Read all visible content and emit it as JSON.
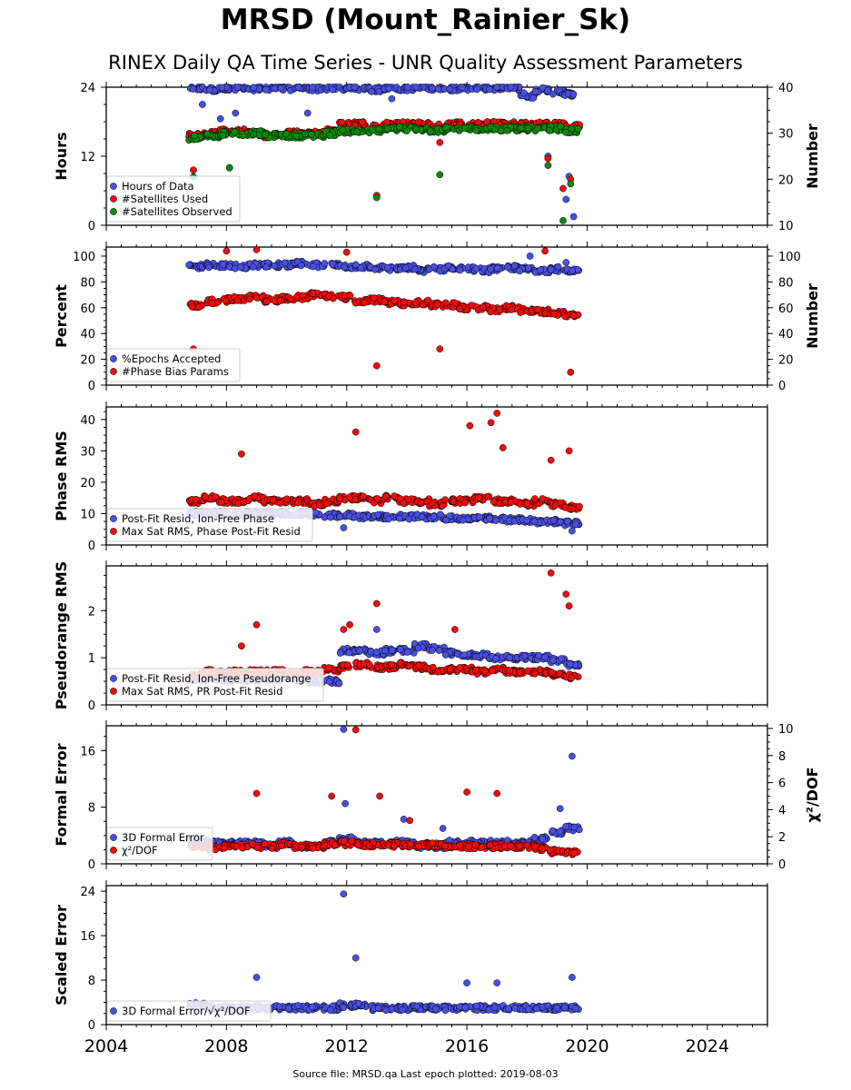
{
  "header": {
    "title": "MRSD (Mount_Rainier_Sk)",
    "subtitle": "RINEX Daily QA Time Series - UNR Quality Assessment Parameters"
  },
  "footer": {
    "source": "Source file: MRSD.qa Last epoch plotted: 2019-08-03"
  },
  "colors": {
    "blue": "#4a4fe0",
    "red": "#f20b0b",
    "green": "#0a8a0a",
    "edge": "#000000"
  },
  "chart_data": [
    {
      "type": "scatter",
      "panel": "hours-satellites",
      "ylabel": "Hours",
      "y2label": "Number",
      "ylim": [
        0,
        24
      ],
      "yticks": [
        0,
        12,
        24
      ],
      "y2lim": [
        10,
        40
      ],
      "y2ticks": [
        10,
        20,
        30,
        40
      ],
      "xlim": [
        2004,
        2026
      ],
      "legend_position": "lower-left",
      "series": [
        {
          "name": "Hours of Data",
          "color": "blue",
          "axis": "left",
          "x": [
            2007.0,
            2007.5,
            2008.0,
            2008.5,
            2009.0,
            2009.5,
            2010.0,
            2010.5,
            2011.0,
            2011.5,
            2012.0,
            2012.5,
            2013.0,
            2013.5,
            2014.0,
            2014.5,
            2015.0,
            2015.5,
            2016.0,
            2016.5,
            2017.0,
            2017.5,
            2018.0,
            2018.5,
            2019.0,
            2019.5,
            2007.2,
            2007.8,
            2008.3,
            2010.7,
            2013.5,
            2017.9,
            2018.7,
            2019.3,
            2019.4,
            2019.55
          ],
          "y": [
            23.8,
            23.6,
            23.9,
            23.7,
            23.8,
            23.9,
            23.8,
            23.9,
            23.7,
            23.9,
            23.8,
            23.9,
            23.6,
            23.9,
            23.8,
            23.9,
            23.9,
            23.8,
            23.9,
            23.9,
            23.8,
            23.9,
            22.5,
            23.5,
            23.2,
            22.8,
            21.0,
            18.5,
            19.5,
            19.5,
            22.0,
            23.0,
            12.0,
            4.5,
            8.5,
            1.5
          ]
        },
        {
          "name": "#Satellites Used",
          "color": "red",
          "axis": "right",
          "x": [
            2007.0,
            2007.5,
            2008.0,
            2008.5,
            2009.0,
            2009.5,
            2010.0,
            2010.5,
            2011.0,
            2011.5,
            2012.0,
            2012.5,
            2013.0,
            2013.5,
            2014.0,
            2014.5,
            2015.0,
            2015.5,
            2016.0,
            2016.5,
            2017.0,
            2017.5,
            2018.0,
            2018.5,
            2019.0,
            2019.5,
            2006.9,
            2008.1,
            2013.0,
            2015.1,
            2018.7,
            2019.2,
            2019.45
          ],
          "y": [
            29.5,
            30.0,
            30.5,
            30.5,
            30.0,
            29.5,
            30.0,
            30.0,
            30.0,
            30.5,
            32.0,
            32.0,
            31.5,
            32.0,
            32.0,
            32.0,
            31.5,
            32.0,
            32.0,
            32.0,
            32.0,
            32.0,
            32.0,
            32.0,
            32.0,
            31.5,
            22.0,
            22.5,
            16.5,
            28.0,
            24.5,
            18.0,
            20.0
          ]
        },
        {
          "name": "#Satellites Observed",
          "color": "green",
          "axis": "right",
          "x": [
            2007.0,
            2007.5,
            2008.0,
            2008.5,
            2009.0,
            2009.5,
            2010.0,
            2010.5,
            2011.0,
            2011.5,
            2012.0,
            2012.5,
            2013.0,
            2013.5,
            2014.0,
            2014.5,
            2015.0,
            2015.5,
            2016.0,
            2016.5,
            2017.0,
            2017.5,
            2018.0,
            2018.5,
            2019.0,
            2019.5,
            2006.9,
            2008.1,
            2013.0,
            2015.1,
            2018.7,
            2019.2,
            2019.45
          ],
          "y": [
            29.0,
            29.5,
            30.0,
            30.0,
            30.0,
            29.5,
            29.5,
            29.5,
            29.5,
            30.0,
            30.5,
            30.5,
            30.5,
            31.0,
            31.0,
            31.0,
            30.5,
            31.0,
            31.0,
            31.0,
            31.0,
            31.0,
            31.0,
            31.0,
            31.0,
            30.5,
            20.5,
            22.5,
            16.0,
            21.0,
            23.0,
            11.0,
            19.0
          ]
        }
      ]
    },
    {
      "type": "scatter",
      "panel": "epochs-phasebias",
      "ylabel": "Percent",
      "y2label": "Number",
      "ylim": [
        0,
        107
      ],
      "yticks": [
        0,
        20,
        40,
        60,
        80,
        100
      ],
      "y2lim": [
        0,
        107
      ],
      "y2ticks": [
        0,
        20,
        40,
        60,
        80,
        100
      ],
      "xlim": [
        2004,
        2026
      ],
      "legend_position": "lower-left",
      "series": [
        {
          "name": "%Epochs Accepted",
          "color": "blue",
          "axis": "left",
          "x": [
            2007.0,
            2007.5,
            2008.0,
            2008.5,
            2009.0,
            2009.5,
            2010.0,
            2010.5,
            2011.0,
            2011.5,
            2012.0,
            2012.5,
            2013.0,
            2013.5,
            2014.0,
            2014.5,
            2015.0,
            2015.5,
            2016.0,
            2016.5,
            2017.0,
            2017.5,
            2018.0,
            2018.5,
            2019.0,
            2019.5,
            2018.1,
            2019.3
          ],
          "y": [
            92,
            93,
            93,
            92,
            93,
            93,
            93,
            94,
            93,
            93,
            92,
            92,
            91,
            90,
            91,
            89,
            90,
            91,
            90,
            89,
            90,
            91,
            90,
            89,
            90,
            88,
            100,
            95
          ]
        },
        {
          "name": "#Phase Bias Params",
          "color": "red",
          "axis": "right",
          "x": [
            2007.0,
            2007.5,
            2008.0,
            2008.5,
            2009.0,
            2009.5,
            2010.0,
            2010.5,
            2011.0,
            2011.5,
            2012.0,
            2012.5,
            2013.0,
            2013.5,
            2014.0,
            2014.5,
            2015.0,
            2015.5,
            2016.0,
            2016.5,
            2017.0,
            2017.5,
            2018.0,
            2018.5,
            2019.0,
            2019.5,
            2008.0,
            2009.0,
            2012.0,
            2013.0,
            2015.1,
            2018.6,
            2006.9,
            2019.45
          ],
          "y": [
            62,
            65,
            66,
            67,
            68,
            66,
            67,
            68,
            70,
            69,
            68,
            65,
            66,
            64,
            63,
            64,
            62,
            62,
            60,
            60,
            58,
            60,
            58,
            57,
            56,
            54,
            104,
            105,
            103,
            15,
            28,
            104,
            28,
            10
          ]
        }
      ]
    },
    {
      "type": "scatter",
      "panel": "phase-rms",
      "ylabel": "Phase RMS",
      "ylim": [
        0,
        44
      ],
      "yticks": [
        0,
        10,
        20,
        30,
        40
      ],
      "xlim": [
        2004,
        2026
      ],
      "legend_position": "lower-left",
      "series": [
        {
          "name": "Post-Fit Resid, Ion-Free Phase",
          "color": "blue",
          "x": [
            2007.0,
            2007.5,
            2008.0,
            2008.5,
            2009.0,
            2009.5,
            2010.0,
            2010.5,
            2011.0,
            2011.5,
            2012.0,
            2012.5,
            2013.0,
            2013.5,
            2014.0,
            2014.5,
            2015.0,
            2015.5,
            2016.0,
            2016.5,
            2017.0,
            2017.5,
            2018.0,
            2018.5,
            2019.0,
            2019.5,
            2011.9,
            2019.5
          ],
          "y": [
            10,
            10,
            10,
            10,
            10,
            10,
            10,
            10,
            10,
            9.5,
            9.5,
            9.0,
            9.0,
            9.0,
            9.0,
            9.0,
            9.0,
            8.5,
            8.5,
            8.5,
            8.5,
            8.0,
            8.0,
            7.5,
            7.5,
            7.0,
            5.5,
            4.5
          ]
        },
        {
          "name": "Max Sat RMS, Phase Post-Fit Resid",
          "color": "red",
          "x": [
            2007.0,
            2007.5,
            2008.0,
            2008.5,
            2009.0,
            2009.5,
            2010.0,
            2010.5,
            2011.0,
            2011.5,
            2012.0,
            2012.5,
            2013.0,
            2013.5,
            2014.0,
            2014.5,
            2015.0,
            2015.5,
            2016.0,
            2016.5,
            2017.0,
            2017.5,
            2018.0,
            2018.5,
            2019.0,
            2019.5,
            2008.5,
            2012.3,
            2016.1,
            2016.8,
            2017.0,
            2017.2,
            2018.8,
            2019.4
          ],
          "y": [
            14,
            15,
            14,
            14,
            15,
            14,
            14,
            14,
            13,
            14,
            15,
            15,
            14,
            15,
            14,
            14,
            13,
            14,
            14,
            15,
            14,
            14,
            13,
            14,
            13,
            12,
            29,
            36,
            38,
            39,
            42,
            31,
            27,
            30
          ]
        }
      ]
    },
    {
      "type": "scatter",
      "panel": "pseudorange-rms",
      "ylabel": "Pseudorange RMS",
      "ylim": [
        0,
        2.95
      ],
      "yticks": [
        0,
        1,
        2
      ],
      "xlim": [
        2004,
        2026
      ],
      "legend_position": "lower-left",
      "series": [
        {
          "name": "Post-Fit Resid, Ion-Free Pseudorange",
          "color": "blue",
          "x": [
            2007.0,
            2007.5,
            2008.0,
            2008.5,
            2009.0,
            2009.5,
            2010.0,
            2010.5,
            2011.0,
            2011.5,
            2012.0,
            2012.5,
            2013.0,
            2013.5,
            2014.0,
            2014.5,
            2015.0,
            2015.5,
            2016.0,
            2016.5,
            2017.0,
            2017.5,
            2018.0,
            2018.5,
            2019.0,
            2019.5,
            2013.0
          ],
          "y": [
            0.55,
            0.55,
            0.55,
            0.55,
            0.55,
            0.55,
            0.55,
            0.55,
            0.5,
            0.5,
            1.15,
            1.15,
            1.1,
            1.15,
            1.15,
            1.25,
            1.2,
            1.1,
            1.05,
            1.05,
            1.0,
            1.0,
            1.0,
            1.0,
            0.95,
            0.85,
            1.6
          ]
        },
        {
          "name": "Max Sat RMS, PR Post-Fit Resid",
          "color": "red",
          "x": [
            2007.0,
            2007.5,
            2008.0,
            2008.5,
            2009.0,
            2009.5,
            2010.0,
            2010.5,
            2011.0,
            2011.5,
            2012.0,
            2012.5,
            2013.0,
            2013.5,
            2014.0,
            2014.5,
            2015.0,
            2015.5,
            2016.0,
            2016.5,
            2017.0,
            2017.5,
            2018.0,
            2018.5,
            2019.0,
            2019.5,
            2008.5,
            2009.0,
            2011.9,
            2012.1,
            2013.0,
            2015.6,
            2018.8,
            2019.3,
            2019.4
          ],
          "y": [
            0.65,
            0.7,
            0.7,
            0.7,
            0.7,
            0.7,
            0.7,
            0.7,
            0.7,
            0.75,
            0.8,
            0.85,
            0.8,
            0.8,
            0.85,
            0.8,
            0.75,
            0.75,
            0.75,
            0.7,
            0.75,
            0.7,
            0.7,
            0.7,
            0.65,
            0.6,
            1.25,
            1.7,
            1.6,
            1.7,
            2.15,
            1.6,
            2.8,
            2.35,
            2.1
          ]
        }
      ]
    },
    {
      "type": "scatter",
      "panel": "formal-error",
      "ylabel": "Formal Error",
      "y2label": "χ²/DOF",
      "ylim": [
        0,
        19.5
      ],
      "yticks": [
        0,
        8,
        16
      ],
      "y2lim": [
        0,
        10.2
      ],
      "y2ticks": [
        0,
        2,
        4,
        6,
        8,
        10
      ],
      "xlim": [
        2004,
        2026
      ],
      "legend_position": "lower-left",
      "series": [
        {
          "name": "3D Formal Error",
          "color": "blue",
          "axis": "left",
          "x": [
            2007.0,
            2007.5,
            2008.0,
            2008.5,
            2009.0,
            2009.5,
            2010.0,
            2010.5,
            2011.0,
            2011.5,
            2012.0,
            2012.5,
            2013.0,
            2013.5,
            2014.0,
            2014.5,
            2015.0,
            2015.5,
            2016.0,
            2016.5,
            2017.0,
            2017.5,
            2018.0,
            2018.5,
            2019.0,
            2019.5,
            2011.9,
            2011.95,
            2013.9,
            2015.2,
            2019.1,
            2019.5
          ],
          "y": [
            3.5,
            3.0,
            3.0,
            3.0,
            3.0,
            2.5,
            3.0,
            2.5,
            2.5,
            3.0,
            3.5,
            3.0,
            3.0,
            3.0,
            3.0,
            2.5,
            2.5,
            3.0,
            3.0,
            3.0,
            3.0,
            3.0,
            3.0,
            3.5,
            4.5,
            5.0,
            19.0,
            8.5,
            6.3,
            5.0,
            7.8,
            15.2
          ]
        },
        {
          "name": "χ²/DOF",
          "color": "red",
          "axis": "right",
          "x": [
            2007.0,
            2007.5,
            2008.0,
            2008.5,
            2009.0,
            2009.5,
            2010.0,
            2010.5,
            2011.0,
            2011.5,
            2012.0,
            2012.5,
            2013.0,
            2013.5,
            2014.0,
            2014.5,
            2015.0,
            2015.5,
            2016.0,
            2016.5,
            2017.0,
            2017.5,
            2018.0,
            2018.5,
            2019.0,
            2019.5,
            2009.0,
            2011.5,
            2012.3,
            2013.1,
            2014.1,
            2016.0,
            2017.0
          ],
          "y": [
            1.3,
            1.2,
            1.3,
            1.3,
            1.3,
            1.3,
            1.4,
            1.3,
            1.3,
            1.4,
            1.5,
            1.4,
            1.4,
            1.4,
            1.4,
            1.4,
            1.4,
            1.3,
            1.3,
            1.3,
            1.3,
            1.3,
            1.3,
            1.1,
            0.9,
            0.8,
            5.2,
            5.0,
            9.9,
            5.0,
            3.2,
            5.3,
            5.2
          ]
        }
      ]
    },
    {
      "type": "scatter",
      "panel": "scaled-error",
      "ylabel": "Scaled Error",
      "ylim": [
        0,
        25
      ],
      "yticks": [
        0,
        8,
        16,
        24
      ],
      "xlim": [
        2004,
        2026
      ],
      "xticks": [
        2004,
        2008,
        2012,
        2016,
        2020,
        2024
      ],
      "legend_position": "lower-left",
      "series": [
        {
          "name": "3D Formal Error/√χ²/DOF",
          "color": "blue",
          "x": [
            2007.0,
            2007.5,
            2008.0,
            2008.5,
            2009.0,
            2009.5,
            2010.0,
            2010.5,
            2011.0,
            2011.5,
            2012.0,
            2012.5,
            2013.0,
            2013.5,
            2014.0,
            2014.5,
            2015.0,
            2015.5,
            2016.0,
            2016.5,
            2017.0,
            2017.5,
            2018.0,
            2018.5,
            2019.0,
            2019.5,
            2011.9,
            2012.3,
            2009.0,
            2016.0,
            2017.0,
            2019.5
          ],
          "y": [
            3.5,
            3.0,
            3.0,
            3.0,
            3.0,
            3.0,
            3.0,
            3.0,
            3.0,
            3.0,
            3.5,
            3.5,
            3.0,
            3.0,
            3.0,
            3.0,
            3.0,
            3.0,
            3.0,
            3.0,
            3.0,
            3.0,
            3.0,
            3.0,
            3.0,
            3.0,
            23.5,
            12.0,
            8.5,
            7.5,
            7.5,
            8.5
          ]
        }
      ]
    }
  ]
}
